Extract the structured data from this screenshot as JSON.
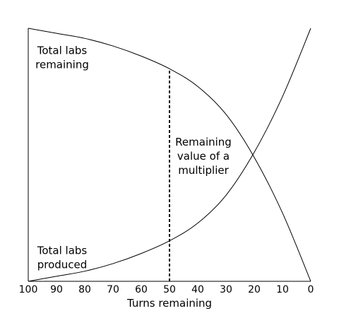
{
  "chart_data": {
    "type": "line",
    "title": "",
    "xlabel": "Turns remaining",
    "ylabel": "",
    "xlim": [
      100,
      0
    ],
    "x_reversed": true,
    "ylim": [
      0,
      1
    ],
    "grid": false,
    "legend": "none",
    "x_ticks": [
      "100",
      "90",
      "80",
      "70",
      "60",
      "50",
      "40",
      "30",
      "20",
      "10",
      "0"
    ],
    "x": [
      100,
      90,
      80,
      70,
      60,
      50,
      40,
      30,
      20,
      10,
      0
    ],
    "series": [
      {
        "name": "Total labs remaining",
        "values": [
          1.0,
          0.98,
          0.96,
          0.93,
          0.89,
          0.84,
          0.77,
          0.66,
          0.49,
          0.27,
          0.0
        ]
      },
      {
        "name": "Total labs produced",
        "values": [
          0.0,
          0.02,
          0.04,
          0.07,
          0.11,
          0.16,
          0.23,
          0.34,
          0.51,
          0.73,
          1.0
        ]
      }
    ],
    "annotations": [
      {
        "text_lines": [
          "Total labs",
          "remaining"
        ],
        "x": 88,
        "y": 0.87
      },
      {
        "text_lines": [
          "Remaining",
          "value of a",
          "multiplier"
        ],
        "x": 38,
        "y": 0.48
      },
      {
        "text_lines": [
          "Total labs",
          "produced"
        ],
        "x": 88,
        "y": 0.08
      }
    ],
    "reference_line": {
      "x": 50,
      "style": "dashed",
      "from_y": 0,
      "to_y": 0.84
    }
  }
}
